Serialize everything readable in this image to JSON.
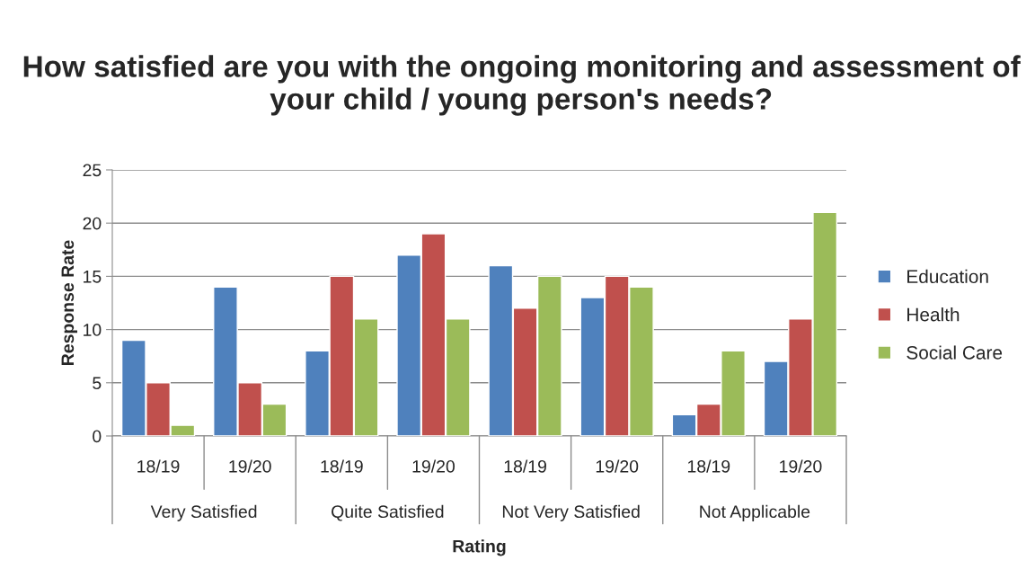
{
  "chart_data": {
    "type": "bar",
    "title": "How satisfied are you with the ongoing monitoring and assessment of your child / young person's needs?",
    "xlabel": "Rating",
    "ylabel": "Response Rate",
    "categories": [
      "18/19",
      "19/20",
      "18/19",
      "19/20",
      "18/19",
      "19/20",
      "18/19",
      "19/20"
    ],
    "annotations": [
      "Very Satisfied",
      "Quite Satisfied",
      "Not Very Satisfied",
      "Not Applicable"
    ],
    "series": [
      {
        "name": "Education",
        "color": "#4f81bd",
        "values": [
          9,
          14,
          8,
          17,
          16,
          13,
          2,
          7
        ]
      },
      {
        "name": "Health",
        "color": "#c0504d",
        "values": [
          5,
          5,
          15,
          19,
          12,
          15,
          3,
          11
        ]
      },
      {
        "name": "Social Care",
        "color": "#9bbb59",
        "values": [
          1,
          3,
          11,
          11,
          15,
          14,
          8,
          21
        ]
      }
    ],
    "ylim": [
      0,
      25
    ],
    "yticks": [
      0,
      5,
      10,
      15,
      20,
      25
    ],
    "grid": "y",
    "legend": "right"
  }
}
